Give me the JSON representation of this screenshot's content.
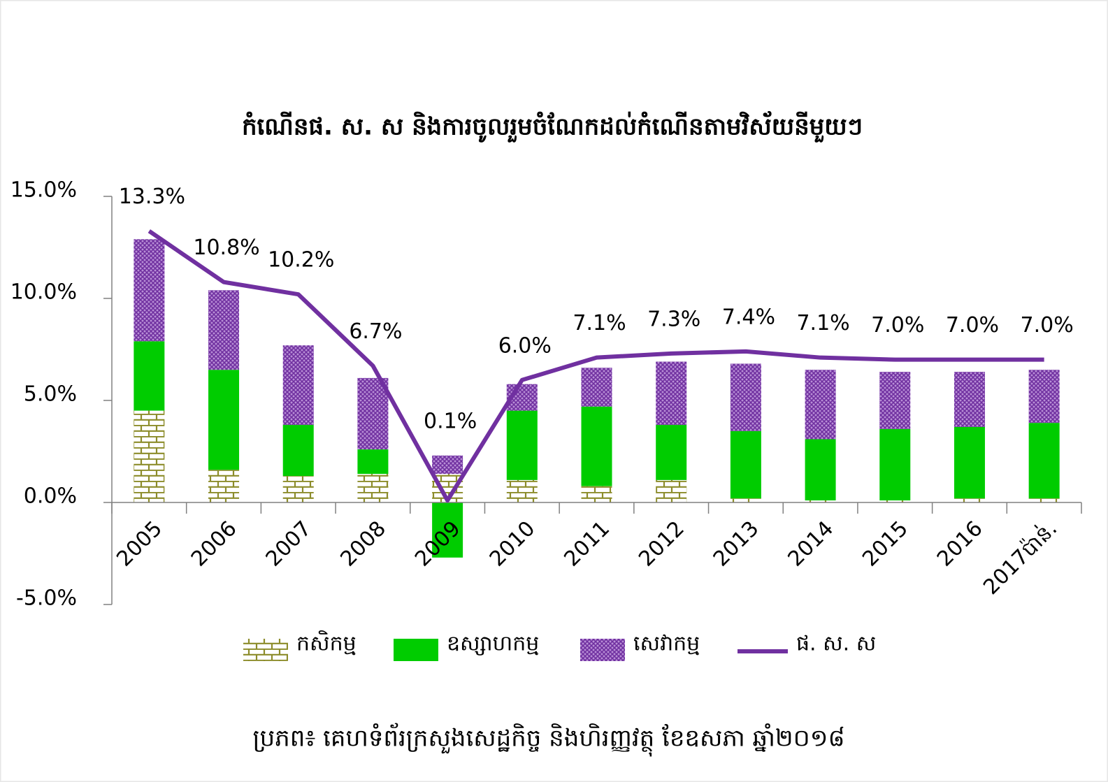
{
  "chart_data": {
    "type": "bar",
    "title": "កំណើនផ. ស. ស និងការចូលរួមចំណែកដល់កំណើនតាមវិស័យនីមួយៗ",
    "source": "ប្រភព៖ គេហទំព័រក្រសួងសេដ្ឋកិច្ច និងហិរញ្ញវត្ថុ ខែឧសភា ឆ្នាំ២០១៨",
    "categories": [
      "2005",
      "2006",
      "2007",
      "2008",
      "2009",
      "2010",
      "2011",
      "2012",
      "2013",
      "2014",
      "2015",
      "2016",
      "2017ប៉ាន់."
    ],
    "series": [
      {
        "name": "កសិកម្ម",
        "type": "bar",
        "pattern": "brick",
        "color": "#8c8c2a",
        "values": [
          4.5,
          1.6,
          1.3,
          1.4,
          1.4,
          1.1,
          0.8,
          1.1,
          0.2,
          0.1,
          0.1,
          0.2,
          0.2
        ]
      },
      {
        "name": "ឧស្សាហកម្ម",
        "type": "bar",
        "color": "#00cc00",
        "values": [
          3.4,
          4.9,
          2.5,
          1.2,
          -2.7,
          3.4,
          3.9,
          2.7,
          3.3,
          3.0,
          3.5,
          3.5,
          3.7
        ]
      },
      {
        "name": "សេវាកម្ម",
        "type": "bar",
        "pattern": "crosshatch",
        "color": "#7030a0",
        "values": [
          5.0,
          3.9,
          3.9,
          3.5,
          0.9,
          1.3,
          1.9,
          3.1,
          3.3,
          3.4,
          2.8,
          2.7,
          2.6
        ]
      },
      {
        "name": "ផ. ស. ស",
        "type": "line",
        "color": "#7030a0",
        "values": [
          13.3,
          10.8,
          10.2,
          6.7,
          0.1,
          6.0,
          7.1,
          7.3,
          7.4,
          7.1,
          7.0,
          7.0,
          7.0
        ],
        "value_labels": [
          "13.3%",
          "10.8%",
          "10.2%",
          "6.7%",
          "0.1%",
          "6.0%",
          "7.1%",
          "7.3%",
          "7.4%",
          "7.1%",
          "7.0%",
          "7.0%",
          "7.0%"
        ]
      }
    ],
    "ylim": [
      -5,
      15
    ],
    "yticks": [
      {
        "value": -5,
        "label": "-5.0%"
      },
      {
        "value": 0,
        "label": "0.0%"
      },
      {
        "value": 5,
        "label": "5.0%"
      },
      {
        "value": 10,
        "label": "10.0%"
      },
      {
        "value": 15,
        "label": "15.0%"
      }
    ],
    "legend": "bottom"
  }
}
